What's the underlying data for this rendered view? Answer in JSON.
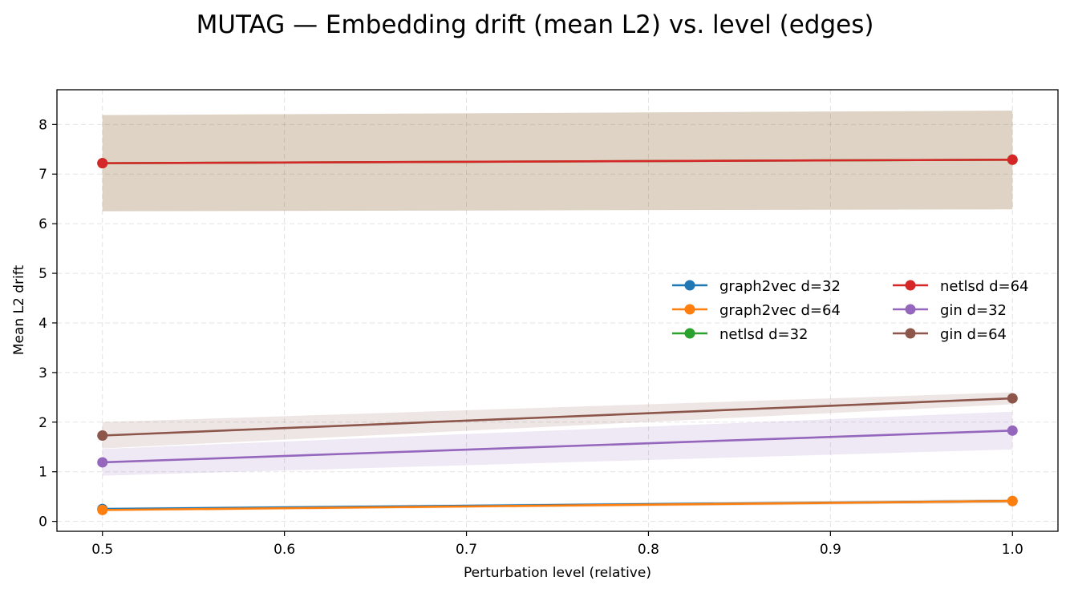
{
  "chart_data": {
    "type": "line",
    "title": "MUTAG — Embedding drift (mean L2) vs. level (edges)",
    "xlabel": "Perturbation level (relative)",
    "ylabel": "Mean L2 drift",
    "xlim": [
      0.475,
      1.025
    ],
    "ylim": [
      -0.2,
      8.7
    ],
    "xticks": [
      0.5,
      0.6,
      0.7,
      0.8,
      0.9,
      1.0
    ],
    "xtick_labels": [
      "0.5",
      "0.6",
      "0.7",
      "0.8",
      "0.9",
      "1.0"
    ],
    "yticks": [
      0,
      1,
      2,
      3,
      4,
      5,
      6,
      7,
      8
    ],
    "ytick_labels": [
      "0",
      "1",
      "2",
      "3",
      "4",
      "5",
      "6",
      "7",
      "8"
    ],
    "grid": true,
    "legend_placement": "center-right",
    "x": [
      0.5,
      1.0
    ],
    "series": [
      {
        "name": "graph2vec d=32",
        "color": "#1f77b4",
        "values": [
          0.25,
          0.41
        ],
        "lower": [
          0.22,
          0.37
        ],
        "upper": [
          0.28,
          0.45
        ]
      },
      {
        "name": "graph2vec d=64",
        "color": "#ff7f0e",
        "values": [
          0.23,
          0.41
        ],
        "lower": [
          0.2,
          0.37
        ],
        "upper": [
          0.26,
          0.45
        ]
      },
      {
        "name": "netlsd d=32",
        "color": "#2ca02c",
        "values": [
          7.22,
          7.29
        ],
        "lower": [
          6.25,
          6.29
        ],
        "upper": [
          8.19,
          8.28
        ]
      },
      {
        "name": "netlsd d=64",
        "color": "#d62728",
        "values": [
          7.22,
          7.29
        ],
        "lower": [
          6.25,
          6.29
        ],
        "upper": [
          8.19,
          8.28
        ]
      },
      {
        "name": "gin d=32",
        "color": "#9467bd",
        "values": [
          1.19,
          1.83
        ],
        "lower": [
          0.92,
          1.45
        ],
        "upper": [
          1.46,
          2.21
        ]
      },
      {
        "name": "gin d=64",
        "color": "#8c564b",
        "values": [
          1.73,
          2.48
        ],
        "lower": [
          1.47,
          2.36
        ],
        "upper": [
          2.0,
          2.6
        ]
      }
    ]
  }
}
